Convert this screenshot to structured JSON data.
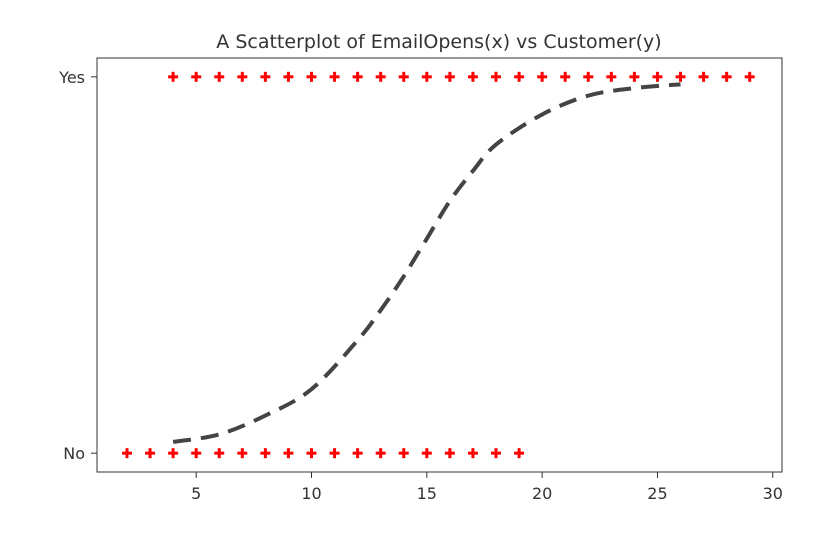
{
  "chart_data": {
    "type": "scatter",
    "title": "A Scatterplot of EmailOpens(x) vs Customer(y)",
    "xlabel": "",
    "ylabel": "",
    "xlim": [
      0.7,
      30.4
    ],
    "ylim": [
      -0.05,
      1.05
    ],
    "xticks": [
      5,
      10,
      15,
      20,
      25,
      30
    ],
    "yticks": [
      {
        "value": 0,
        "label": "No"
      },
      {
        "value": 1,
        "label": "Yes"
      }
    ],
    "grid": false,
    "legend": "none",
    "series": [
      {
        "type": "scatter",
        "marker": "plus",
        "color": "#ff0000",
        "points": [
          [
            2,
            0
          ],
          [
            3,
            0
          ],
          [
            4,
            0
          ],
          [
            5,
            0
          ],
          [
            6,
            0
          ],
          [
            7,
            0
          ],
          [
            8,
            0
          ],
          [
            9,
            0
          ],
          [
            10,
            0
          ],
          [
            11,
            0
          ],
          [
            12,
            0
          ],
          [
            13,
            0
          ],
          [
            14,
            0
          ],
          [
            15,
            0
          ],
          [
            16,
            0
          ],
          [
            17,
            0
          ],
          [
            18,
            0
          ],
          [
            19,
            0
          ],
          [
            4,
            1
          ],
          [
            5,
            1
          ],
          [
            6,
            1
          ],
          [
            7,
            1
          ],
          [
            8,
            1
          ],
          [
            9,
            1
          ],
          [
            10,
            1
          ],
          [
            11,
            1
          ],
          [
            12,
            1
          ],
          [
            13,
            1
          ],
          [
            14,
            1
          ],
          [
            15,
            1
          ],
          [
            16,
            1
          ],
          [
            17,
            1
          ],
          [
            18,
            1
          ],
          [
            19,
            1
          ],
          [
            20,
            1
          ],
          [
            21,
            1
          ],
          [
            22,
            1
          ],
          [
            23,
            1
          ],
          [
            24,
            1
          ],
          [
            25,
            1
          ],
          [
            26,
            1
          ],
          [
            27,
            1
          ],
          [
            28,
            1
          ],
          [
            29,
            1
          ]
        ]
      },
      {
        "type": "line",
        "style": "dashed",
        "color": "#444444",
        "points": [
          [
            4,
            0.03
          ],
          [
            6,
            0.05
          ],
          [
            8,
            0.1
          ],
          [
            10,
            0.17
          ],
          [
            12,
            0.3
          ],
          [
            13,
            0.38
          ],
          [
            14,
            0.47
          ],
          [
            15,
            0.57
          ],
          [
            16,
            0.67
          ],
          [
            17,
            0.75
          ],
          [
            18,
            0.82
          ],
          [
            20,
            0.9
          ],
          [
            22,
            0.95
          ],
          [
            24,
            0.97
          ],
          [
            26,
            0.98
          ]
        ]
      }
    ]
  }
}
